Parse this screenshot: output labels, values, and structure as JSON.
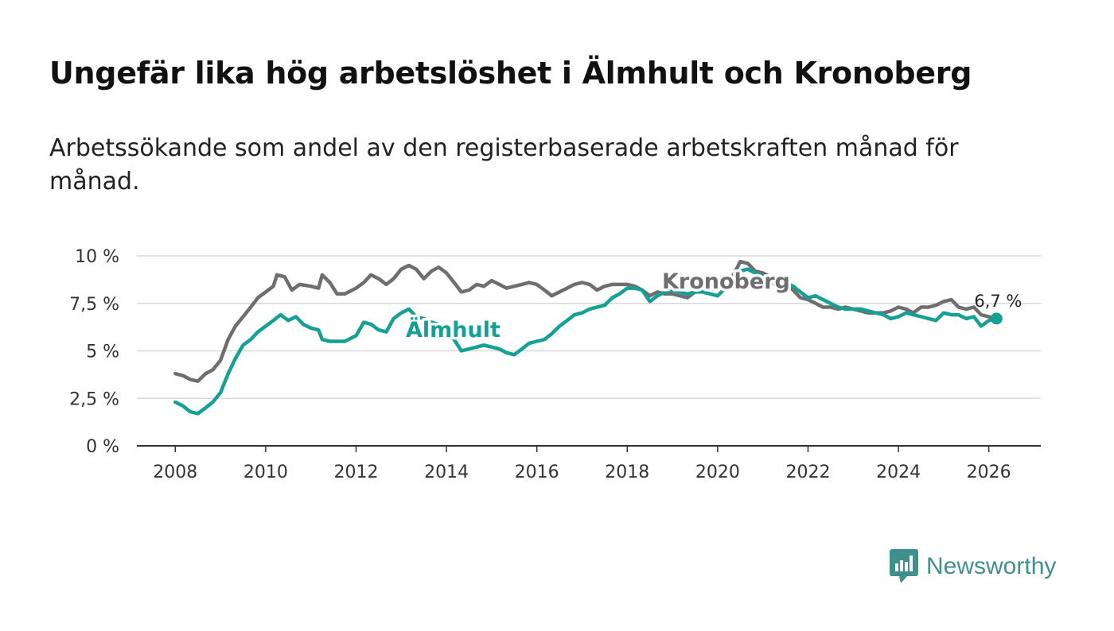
{
  "title": "Ungefär lika hög arbetslöshet i Älmhult och Kronoberg",
  "subtitle": "Arbetssökande som andel av den registerbaserade arbetskraften månad för månad.",
  "brand": {
    "name": "Newsworthy",
    "icon": "newsworthy-logo-icon",
    "color": "#3f8f8c"
  },
  "chart_data": {
    "type": "line",
    "ylim": [
      0,
      10
    ],
    "y_ticks": [
      0,
      2.5,
      5,
      7.5,
      10
    ],
    "y_tick_labels": [
      "0 %",
      "2,5 %",
      "5 %",
      "7,5 %",
      "10 %"
    ],
    "xlim": [
      2007.15,
      2027.15
    ],
    "x_ticks": [
      2008,
      2010,
      2012,
      2014,
      2016,
      2018,
      2020,
      2022,
      2024,
      2026
    ],
    "x_tick_labels": [
      "2008",
      "2010",
      "2012",
      "2014",
      "2016",
      "2018",
      "2020",
      "2022",
      "2024",
      "2026"
    ],
    "grid": "horizontal",
    "end_label": "6,7 %",
    "series": [
      {
        "name": "Kronoberg",
        "label": "Kronoberg",
        "color": "#6e6e70",
        "points": [
          [
            2008.0,
            3.8
          ],
          [
            2008.17,
            3.7
          ],
          [
            2008.33,
            3.5
          ],
          [
            2008.5,
            3.4
          ],
          [
            2008.67,
            3.8
          ],
          [
            2008.83,
            4.0
          ],
          [
            2009.0,
            4.5
          ],
          [
            2009.17,
            5.6
          ],
          [
            2009.33,
            6.3
          ],
          [
            2009.5,
            6.8
          ],
          [
            2009.67,
            7.3
          ],
          [
            2009.83,
            7.8
          ],
          [
            2010.0,
            8.1
          ],
          [
            2010.17,
            8.4
          ],
          [
            2010.25,
            9.0
          ],
          [
            2010.42,
            8.9
          ],
          [
            2010.58,
            8.2
          ],
          [
            2010.75,
            8.5
          ],
          [
            2011.0,
            8.4
          ],
          [
            2011.17,
            8.3
          ],
          [
            2011.25,
            9.0
          ],
          [
            2011.42,
            8.6
          ],
          [
            2011.58,
            8.0
          ],
          [
            2011.75,
            8.0
          ],
          [
            2012.0,
            8.3
          ],
          [
            2012.17,
            8.6
          ],
          [
            2012.33,
            9.0
          ],
          [
            2012.5,
            8.8
          ],
          [
            2012.67,
            8.5
          ],
          [
            2012.83,
            8.8
          ],
          [
            2013.0,
            9.3
          ],
          [
            2013.17,
            9.5
          ],
          [
            2013.33,
            9.3
          ],
          [
            2013.5,
            8.8
          ],
          [
            2013.67,
            9.2
          ],
          [
            2013.83,
            9.4
          ],
          [
            2014.0,
            9.1
          ],
          [
            2014.17,
            8.6
          ],
          [
            2014.33,
            8.1
          ],
          [
            2014.5,
            8.2
          ],
          [
            2014.67,
            8.5
          ],
          [
            2014.83,
            8.4
          ],
          [
            2015.0,
            8.7
          ],
          [
            2015.17,
            8.5
          ],
          [
            2015.33,
            8.3
          ],
          [
            2015.5,
            8.4
          ],
          [
            2015.67,
            8.5
          ],
          [
            2015.83,
            8.6
          ],
          [
            2016.0,
            8.5
          ],
          [
            2016.17,
            8.2
          ],
          [
            2016.33,
            7.9
          ],
          [
            2016.5,
            8.1
          ],
          [
            2016.67,
            8.3
          ],
          [
            2016.83,
            8.5
          ],
          [
            2017.0,
            8.6
          ],
          [
            2017.17,
            8.5
          ],
          [
            2017.33,
            8.2
          ],
          [
            2017.5,
            8.4
          ],
          [
            2017.67,
            8.5
          ],
          [
            2017.83,
            8.5
          ],
          [
            2018.0,
            8.5
          ],
          [
            2018.17,
            8.4
          ],
          [
            2018.33,
            8.2
          ],
          [
            2018.5,
            7.9
          ],
          [
            2018.67,
            8.1
          ],
          [
            2018.83,
            8.0
          ],
          [
            2019.0,
            8.0
          ],
          [
            2019.17,
            7.9
          ],
          [
            2019.33,
            7.8
          ],
          [
            2019.5,
            8.1
          ],
          [
            2019.67,
            8.3
          ],
          [
            2019.83,
            8.5
          ],
          [
            2020.0,
            8.4
          ],
          [
            2020.17,
            8.6
          ],
          [
            2020.33,
            8.9
          ],
          [
            2020.5,
            9.7
          ],
          [
            2020.67,
            9.6
          ],
          [
            2020.83,
            9.2
          ],
          [
            2021.0,
            9.1
          ],
          [
            2021.17,
            8.9
          ],
          [
            2021.33,
            8.7
          ],
          [
            2021.5,
            8.6
          ],
          [
            2021.67,
            8.2
          ],
          [
            2021.83,
            7.8
          ],
          [
            2022.0,
            7.7
          ],
          [
            2022.17,
            7.5
          ],
          [
            2022.33,
            7.3
          ],
          [
            2022.5,
            7.3
          ],
          [
            2022.67,
            7.2
          ],
          [
            2022.83,
            7.3
          ],
          [
            2023.0,
            7.2
          ],
          [
            2023.17,
            7.1
          ],
          [
            2023.33,
            7.0
          ],
          [
            2023.5,
            7.0
          ],
          [
            2023.67,
            7.0
          ],
          [
            2023.83,
            7.1
          ],
          [
            2024.0,
            7.3
          ],
          [
            2024.17,
            7.2
          ],
          [
            2024.33,
            7.0
          ],
          [
            2024.5,
            7.3
          ],
          [
            2024.67,
            7.3
          ],
          [
            2024.83,
            7.4
          ],
          [
            2025.0,
            7.6
          ],
          [
            2025.17,
            7.7
          ],
          [
            2025.33,
            7.3
          ],
          [
            2025.5,
            7.2
          ],
          [
            2025.67,
            7.3
          ],
          [
            2025.83,
            6.9
          ],
          [
            2026.0,
            6.8
          ],
          [
            2026.17,
            6.7
          ]
        ]
      },
      {
        "name": "Älmhult",
        "label": "Älmhult",
        "color": "#15a096",
        "points": [
          [
            2008.0,
            2.3
          ],
          [
            2008.17,
            2.1
          ],
          [
            2008.33,
            1.8
          ],
          [
            2008.5,
            1.7
          ],
          [
            2008.67,
            2.0
          ],
          [
            2008.83,
            2.3
          ],
          [
            2009.0,
            2.8
          ],
          [
            2009.17,
            3.8
          ],
          [
            2009.33,
            4.6
          ],
          [
            2009.5,
            5.3
          ],
          [
            2009.67,
            5.6
          ],
          [
            2009.83,
            6.0
          ],
          [
            2010.0,
            6.3
          ],
          [
            2010.17,
            6.6
          ],
          [
            2010.33,
            6.9
          ],
          [
            2010.5,
            6.6
          ],
          [
            2010.67,
            6.8
          ],
          [
            2010.83,
            6.4
          ],
          [
            2011.0,
            6.2
          ],
          [
            2011.17,
            6.1
          ],
          [
            2011.25,
            5.6
          ],
          [
            2011.42,
            5.5
          ],
          [
            2011.58,
            5.5
          ],
          [
            2011.75,
            5.5
          ],
          [
            2012.0,
            5.8
          ],
          [
            2012.17,
            6.5
          ],
          [
            2012.33,
            6.4
          ],
          [
            2012.5,
            6.1
          ],
          [
            2012.67,
            6.0
          ],
          [
            2012.83,
            6.7
          ],
          [
            2013.0,
            7.0
          ],
          [
            2013.17,
            7.2
          ],
          [
            2013.33,
            6.8
          ],
          [
            2013.5,
            6.7
          ],
          [
            2013.67,
            6.5
          ],
          [
            2013.83,
            6.4
          ],
          [
            2014.0,
            6.2
          ],
          [
            2014.17,
            5.6
          ],
          [
            2014.33,
            5.0
          ],
          [
            2014.5,
            5.1
          ],
          [
            2014.67,
            5.2
          ],
          [
            2014.83,
            5.3
          ],
          [
            2015.0,
            5.2
          ],
          [
            2015.17,
            5.1
          ],
          [
            2015.33,
            4.9
          ],
          [
            2015.5,
            4.8
          ],
          [
            2015.67,
            5.1
          ],
          [
            2015.83,
            5.4
          ],
          [
            2016.0,
            5.5
          ],
          [
            2016.17,
            5.6
          ],
          [
            2016.33,
            5.9
          ],
          [
            2016.5,
            6.3
          ],
          [
            2016.67,
            6.6
          ],
          [
            2016.83,
            6.9
          ],
          [
            2017.0,
            7.0
          ],
          [
            2017.17,
            7.2
          ],
          [
            2017.33,
            7.3
          ],
          [
            2017.5,
            7.4
          ],
          [
            2017.67,
            7.8
          ],
          [
            2017.83,
            8.0
          ],
          [
            2018.0,
            8.3
          ],
          [
            2018.17,
            8.3
          ],
          [
            2018.33,
            8.2
          ],
          [
            2018.5,
            7.6
          ],
          [
            2018.67,
            7.9
          ],
          [
            2018.83,
            8.1
          ],
          [
            2019.0,
            8.2
          ],
          [
            2019.17,
            8.1
          ],
          [
            2019.33,
            8.0
          ],
          [
            2019.5,
            8.1
          ],
          [
            2019.67,
            8.1
          ],
          [
            2019.83,
            8.0
          ],
          [
            2020.0,
            7.9
          ],
          [
            2020.17,
            8.3
          ],
          [
            2020.33,
            8.8
          ],
          [
            2020.5,
            9.2
          ],
          [
            2020.67,
            9.3
          ],
          [
            2020.83,
            9.1
          ],
          [
            2021.0,
            8.9
          ],
          [
            2021.17,
            8.6
          ],
          [
            2021.33,
            8.4
          ],
          [
            2021.5,
            8.6
          ],
          [
            2021.67,
            8.4
          ],
          [
            2021.83,
            8.1
          ],
          [
            2022.0,
            7.8
          ],
          [
            2022.17,
            7.9
          ],
          [
            2022.33,
            7.7
          ],
          [
            2022.5,
            7.5
          ],
          [
            2022.67,
            7.3
          ],
          [
            2022.83,
            7.2
          ],
          [
            2023.0,
            7.2
          ],
          [
            2023.17,
            7.2
          ],
          [
            2023.33,
            7.1
          ],
          [
            2023.5,
            7.0
          ],
          [
            2023.67,
            6.9
          ],
          [
            2023.83,
            6.7
          ],
          [
            2024.0,
            6.8
          ],
          [
            2024.17,
            7.0
          ],
          [
            2024.33,
            6.9
          ],
          [
            2024.5,
            6.8
          ],
          [
            2024.67,
            6.7
          ],
          [
            2024.83,
            6.6
          ],
          [
            2025.0,
            7.0
          ],
          [
            2025.17,
            6.9
          ],
          [
            2025.33,
            6.9
          ],
          [
            2025.5,
            6.7
          ],
          [
            2025.67,
            6.8
          ],
          [
            2025.83,
            6.3
          ],
          [
            2026.0,
            6.6
          ],
          [
            2026.17,
            6.7
          ]
        ]
      }
    ]
  }
}
